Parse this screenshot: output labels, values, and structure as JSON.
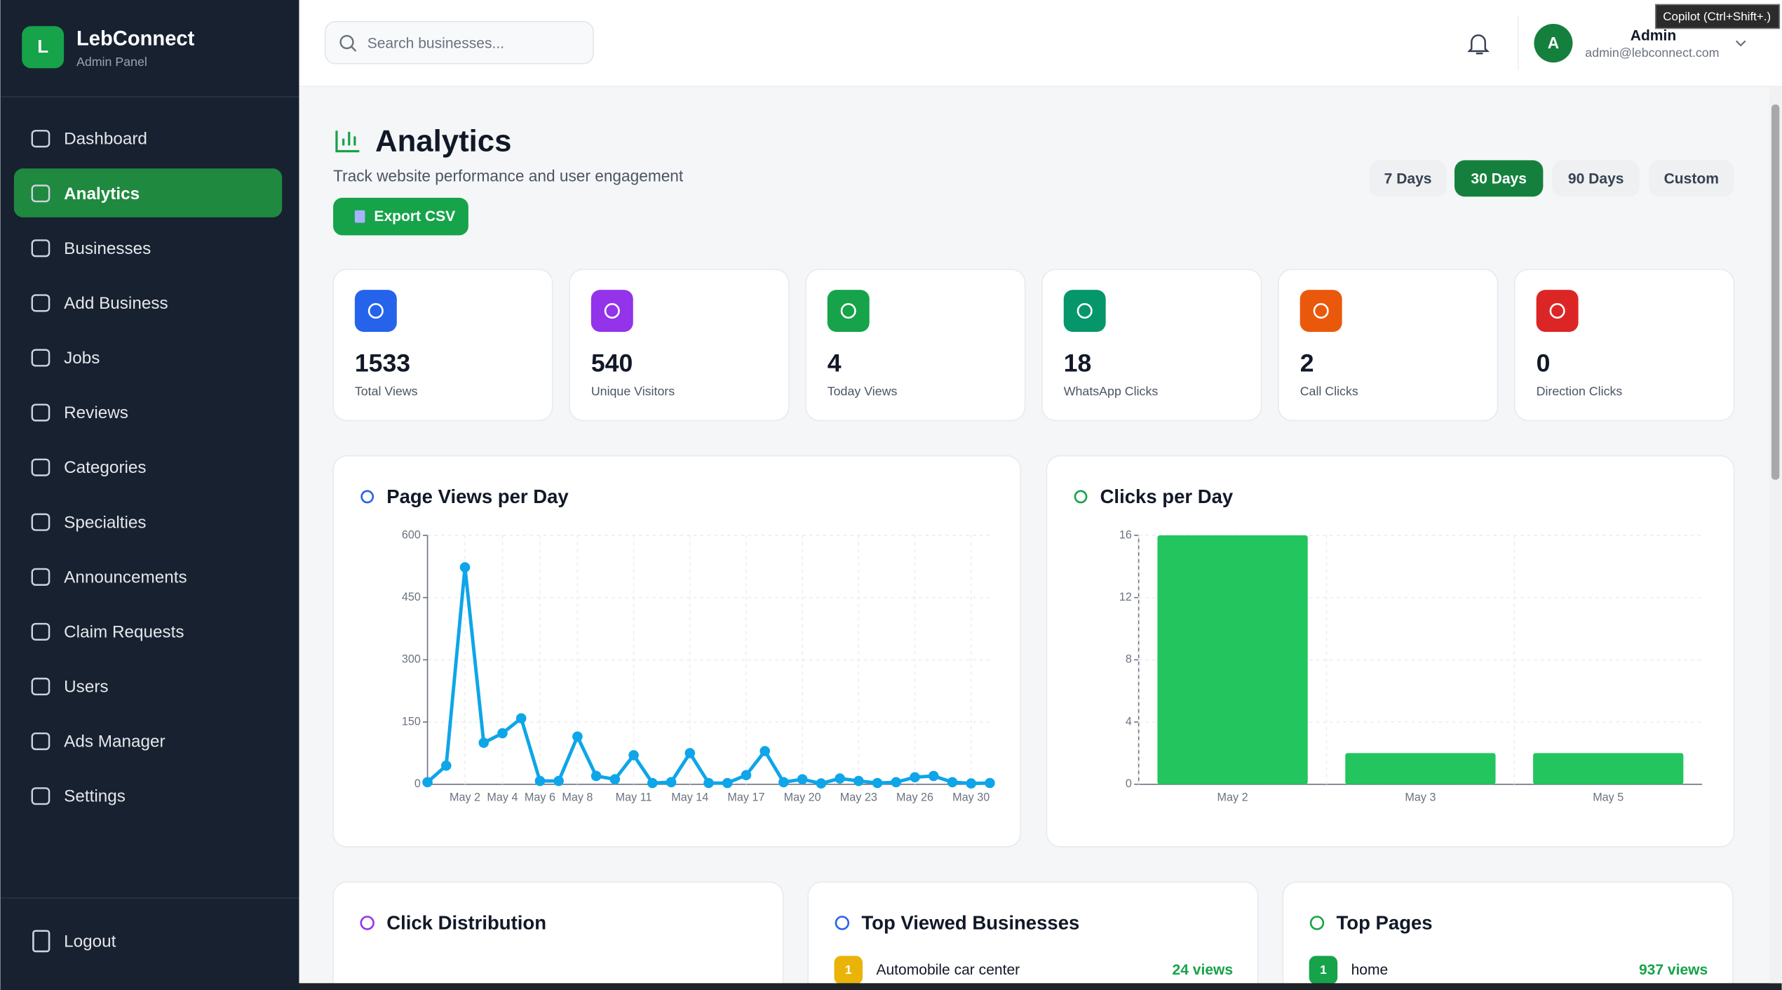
{
  "sidebar": {
    "logo": "L",
    "brand": "LebConnect",
    "subtitle": "Admin Panel",
    "nav": [
      "Dashboard",
      "Analytics",
      "Businesses",
      "Add Business",
      "Jobs",
      "Reviews",
      "Categories",
      "Specialties",
      "Announcements",
      "Claim Requests",
      "Users",
      "Ads Manager",
      "Settings"
    ],
    "logout": "Logout"
  },
  "header": {
    "search_placeholder": "Search businesses...",
    "avatar": "A",
    "user_name": "Admin",
    "user_email": "admin@lebconnect.com",
    "tooltip": "Copilot (Ctrl+Shift+.)"
  },
  "page": {
    "title": "Analytics",
    "subtitle": "Track website performance and user engagement",
    "export": "Export CSV",
    "ranges": [
      "7 Days",
      "30 Days",
      "90 Days",
      "Custom"
    ]
  },
  "stats": [
    {
      "value": "1533",
      "label": "Total Views"
    },
    {
      "value": "540",
      "label": "Unique Visitors"
    },
    {
      "value": "4",
      "label": "Today Views"
    },
    {
      "value": "18",
      "label": "WhatsApp Clicks"
    },
    {
      "value": "2",
      "label": "Call Clicks"
    },
    {
      "value": "0",
      "label": "Direction Clicks"
    }
  ],
  "chart_data": [
    {
      "type": "line",
      "title": "Page Views per Day",
      "color": "#0ea5e9",
      "grid": true,
      "categories": [
        null,
        null,
        "May 2",
        null,
        "May 4",
        null,
        "May 6",
        null,
        "May 8",
        null,
        null,
        "May 11",
        null,
        null,
        "May 14",
        null,
        null,
        "May 17",
        null,
        null,
        "May 20",
        null,
        null,
        "May 23",
        null,
        null,
        "May 26",
        null,
        null,
        "May 30",
        null
      ],
      "values": [
        5,
        45,
        523,
        100,
        123,
        159,
        8,
        8,
        115,
        20,
        12,
        70,
        3,
        5,
        75,
        3,
        3,
        22,
        80,
        5,
        12,
        2,
        14,
        8,
        3,
        5,
        17,
        20,
        5,
        2,
        3
      ],
      "ylim": [
        0,
        600
      ],
      "yticks": [
        0,
        150,
        300,
        450,
        600
      ]
    },
    {
      "type": "bar",
      "title": "Clicks per Day",
      "color": "#22c55e",
      "grid": true,
      "categories": [
        "May 2",
        "May 3",
        "May 5"
      ],
      "values": [
        16,
        2,
        2
      ],
      "ylim": [
        0,
        16
      ],
      "yticks": [
        0,
        4,
        8,
        12,
        16
      ]
    }
  ],
  "panels": [
    {
      "title": "Click Distribution",
      "rows": []
    },
    {
      "title": "Top Viewed Businesses",
      "rows": [
        {
          "rank": "1",
          "name": "Automobile car center",
          "views": "24 views"
        }
      ]
    },
    {
      "title": "Top Pages",
      "rows": [
        {
          "rank": "1",
          "name": "home",
          "views": "937 views"
        }
      ]
    }
  ]
}
